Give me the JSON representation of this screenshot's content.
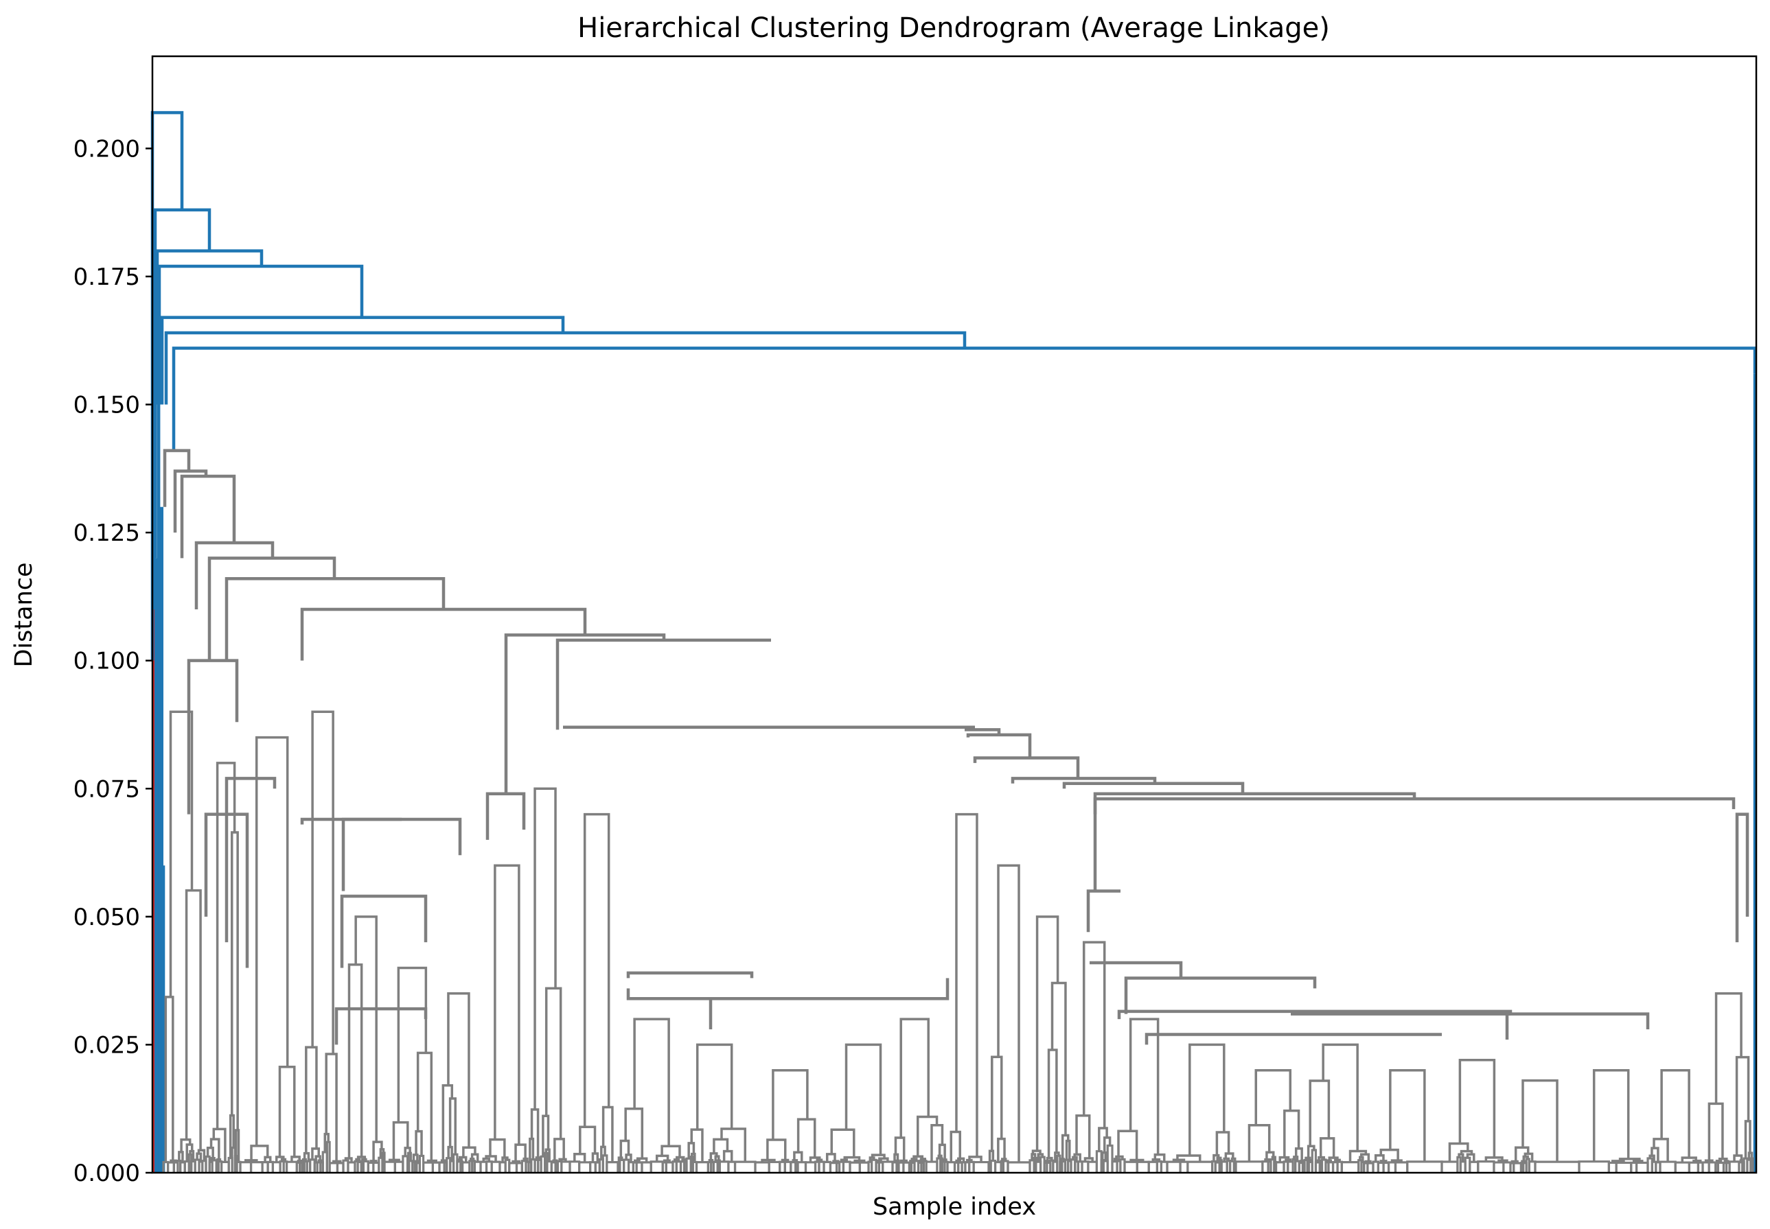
{
  "chart_data": {
    "type": "dendrogram",
    "title": "Hierarchical Clustering Dendrogram (Average Linkage)",
    "xlabel": "Sample index",
    "ylabel": "Distance",
    "ylim": [
      0,
      0.218
    ],
    "yticks": [
      0,
      0.025,
      0.05,
      0.075,
      0.1,
      0.125,
      0.15,
      0.175,
      0.2
    ],
    "ytick_labels": [
      "0.000",
      "0.025",
      "0.050",
      "0.075",
      "0.100",
      "0.125",
      "0.150",
      "0.175",
      "0.200"
    ],
    "grid": false,
    "colors": {
      "above_threshold": "#1f77b4",
      "cluster": "#7f7f7f",
      "small_cluster": "#d62728",
      "frame": "#000000"
    },
    "top_merges": [
      {
        "height": 0.207
      },
      {
        "height": 0.188
      },
      {
        "height": 0.18
      },
      {
        "height": 0.177
      },
      {
        "height": 0.167
      },
      {
        "height": 0.164
      },
      {
        "height": 0.161
      }
    ],
    "major_gray_merges": [
      {
        "height": 0.141
      },
      {
        "height": 0.137
      },
      {
        "height": 0.136
      },
      {
        "height": 0.123
      },
      {
        "height": 0.12
      },
      {
        "height": 0.116
      },
      {
        "height": 0.11
      },
      {
        "height": 0.105
      },
      {
        "height": 0.104
      },
      {
        "height": 0.087
      },
      {
        "height": 0.0865
      },
      {
        "height": 0.0855
      },
      {
        "height": 0.081
      },
      {
        "height": 0.077
      },
      {
        "height": 0.076
      },
      {
        "height": 0.074
      },
      {
        "height": 0.073
      },
      {
        "height": 0.071
      },
      {
        "height": 0.069
      },
      {
        "height": 0.055
      },
      {
        "height": 0.047
      },
      {
        "height": 0.041
      },
      {
        "height": 0.038
      },
      {
        "height": 0.036
      },
      {
        "height": 0.034
      },
      {
        "height": 0.031
      },
      {
        "height": 0.027
      }
    ]
  }
}
